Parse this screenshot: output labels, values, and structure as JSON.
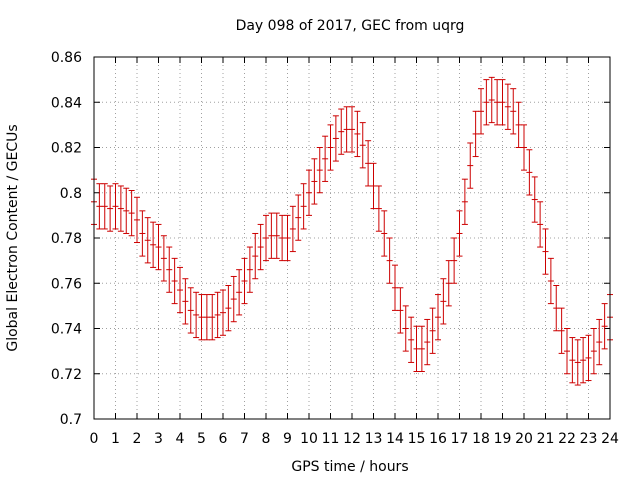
{
  "chart_data": {
    "type": "scatter",
    "title": "Day 098 of 2017, GEC from uqrg",
    "xlabel": "GPS time / hours",
    "ylabel": "Global Electron Content / GECUs",
    "xlim": [
      0,
      24
    ],
    "ylim": [
      0.7,
      0.86
    ],
    "grid": true,
    "x_ticks": [
      0,
      1,
      2,
      3,
      4,
      5,
      6,
      7,
      8,
      9,
      10,
      11,
      12,
      13,
      14,
      15,
      16,
      17,
      18,
      19,
      20,
      21,
      22,
      23,
      24
    ],
    "y_ticks": [
      0.7,
      0.72,
      0.74,
      0.76,
      0.78,
      0.8,
      0.82,
      0.84,
      0.86
    ],
    "x_tick_labels": [
      "0",
      "1",
      "2",
      "3",
      "4",
      "5",
      "6",
      "7",
      "8",
      "9",
      "10",
      "11",
      "12",
      "13",
      "14",
      "15",
      "16",
      "17",
      "18",
      "19",
      "20",
      "21",
      "22",
      "23",
      "24"
    ],
    "y_tick_labels": [
      "0.7",
      "0.72",
      "0.74",
      "0.76",
      "0.78",
      "0.8",
      "0.82",
      "0.84",
      "0.86"
    ],
    "error": 0.01,
    "series": [
      {
        "name": "GEC",
        "color": "#cc0000",
        "x": [
          0.0,
          0.25,
          0.5,
          0.75,
          1.0,
          1.25,
          1.5,
          1.75,
          2.0,
          2.25,
          2.5,
          2.75,
          3.0,
          3.25,
          3.5,
          3.75,
          4.0,
          4.25,
          4.5,
          4.75,
          5.0,
          5.25,
          5.5,
          5.75,
          6.0,
          6.25,
          6.5,
          6.75,
          7.0,
          7.25,
          7.5,
          7.75,
          8.0,
          8.25,
          8.5,
          8.75,
          9.0,
          9.25,
          9.5,
          9.75,
          10.0,
          10.25,
          10.5,
          10.75,
          11.0,
          11.25,
          11.5,
          11.75,
          12.0,
          12.25,
          12.5,
          12.75,
          13.0,
          13.25,
          13.5,
          13.75,
          14.0,
          14.25,
          14.5,
          14.75,
          15.0,
          15.25,
          15.5,
          15.75,
          16.0,
          16.25,
          16.5,
          16.75,
          17.0,
          17.25,
          17.5,
          17.75,
          18.0,
          18.25,
          18.5,
          18.75,
          19.0,
          19.25,
          19.5,
          19.75,
          20.0,
          20.25,
          20.5,
          20.75,
          21.0,
          21.25,
          21.5,
          21.75,
          22.0,
          22.25,
          22.5,
          22.75,
          23.0,
          23.25,
          23.5,
          23.75,
          24.0
        ],
        "values": [
          0.796,
          0.794,
          0.794,
          0.793,
          0.794,
          0.793,
          0.792,
          0.791,
          0.788,
          0.782,
          0.779,
          0.777,
          0.776,
          0.771,
          0.766,
          0.761,
          0.757,
          0.752,
          0.748,
          0.746,
          0.745,
          0.745,
          0.745,
          0.746,
          0.747,
          0.749,
          0.753,
          0.756,
          0.761,
          0.766,
          0.772,
          0.776,
          0.78,
          0.781,
          0.781,
          0.78,
          0.78,
          0.784,
          0.789,
          0.794,
          0.8,
          0.805,
          0.81,
          0.815,
          0.82,
          0.824,
          0.827,
          0.828,
          0.828,
          0.826,
          0.821,
          0.813,
          0.803,
          0.793,
          0.782,
          0.77,
          0.758,
          0.748,
          0.74,
          0.735,
          0.731,
          0.731,
          0.734,
          0.739,
          0.745,
          0.752,
          0.76,
          0.77,
          0.782,
          0.796,
          0.812,
          0.826,
          0.836,
          0.84,
          0.841,
          0.84,
          0.84,
          0.838,
          0.836,
          0.83,
          0.82,
          0.809,
          0.797,
          0.786,
          0.774,
          0.761,
          0.749,
          0.739,
          0.73,
          0.726,
          0.725,
          0.726,
          0.727,
          0.73,
          0.734,
          0.741,
          0.745
        ]
      }
    ]
  }
}
